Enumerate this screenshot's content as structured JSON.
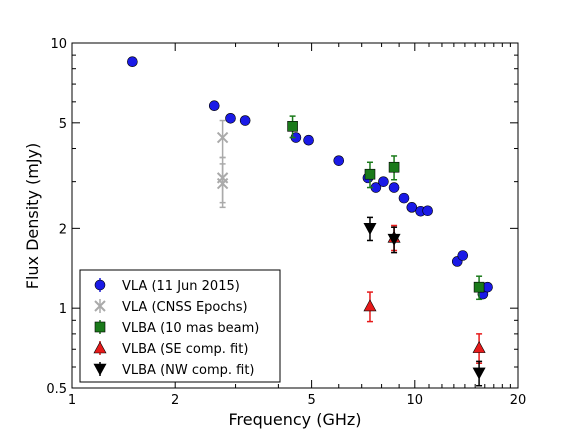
{
  "chart_data": {
    "type": "scatter",
    "xlabel": "Frequency (GHz)",
    "ylabel": "Flux Density (mJy)",
    "xscale": "log",
    "yscale": "log",
    "xlim": [
      1,
      20
    ],
    "ylim": [
      0.5,
      10
    ],
    "x_ticks": [
      {
        "value": 1,
        "label": "1"
      },
      {
        "value": 2,
        "label": "2"
      },
      {
        "value": 5,
        "label": "5"
      },
      {
        "value": 10,
        "label": "10"
      },
      {
        "value": 20,
        "label": "20"
      }
    ],
    "y_ticks": [
      {
        "value": 0.5,
        "label": "0.5"
      },
      {
        "value": 1,
        "label": "1"
      },
      {
        "value": 2,
        "label": "2"
      },
      {
        "value": 5,
        "label": "5"
      },
      {
        "value": 10,
        "label": "10"
      }
    ],
    "legend_position": "lower-left",
    "series": [
      {
        "name": "VLA (11 Jun 2015)",
        "marker": "circle",
        "color": "#1a1ae6",
        "points": [
          {
            "x": 1.5,
            "y": 8.5,
            "err": 0
          },
          {
            "x": 2.6,
            "y": 5.8,
            "err": 0
          },
          {
            "x": 2.9,
            "y": 5.2,
            "err": 0
          },
          {
            "x": 3.2,
            "y": 5.1,
            "err": 0
          },
          {
            "x": 4.5,
            "y": 4.4,
            "err": 0
          },
          {
            "x": 4.9,
            "y": 4.3,
            "err": 0
          },
          {
            "x": 6.0,
            "y": 3.6,
            "err": 0
          },
          {
            "x": 7.3,
            "y": 3.1,
            "err": 0
          },
          {
            "x": 7.7,
            "y": 2.85,
            "err": 0
          },
          {
            "x": 8.1,
            "y": 3.0,
            "err": 0
          },
          {
            "x": 8.7,
            "y": 2.85,
            "err": 0
          },
          {
            "x": 9.3,
            "y": 2.6,
            "err": 0
          },
          {
            "x": 9.8,
            "y": 2.4,
            "err": 0
          },
          {
            "x": 10.4,
            "y": 2.32,
            "err": 0
          },
          {
            "x": 10.9,
            "y": 2.33,
            "err": 0
          },
          {
            "x": 13.3,
            "y": 1.5,
            "err": 0
          },
          {
            "x": 13.8,
            "y": 1.58,
            "err": 0
          },
          {
            "x": 15.8,
            "y": 1.13,
            "err": 0
          },
          {
            "x": 16.3,
            "y": 1.2,
            "err": 0
          }
        ]
      },
      {
        "name": "VLA (CNSS Epochs)",
        "marker": "x",
        "color": "#aaaaaa",
        "points": [
          {
            "x": 2.75,
            "y": 4.4,
            "err": 0.7
          },
          {
            "x": 2.75,
            "y": 3.1,
            "err": 0.6
          },
          {
            "x": 2.75,
            "y": 2.95,
            "err": 0.55
          }
        ]
      },
      {
        "name": "VLBA (10 mas beam)",
        "marker": "square",
        "color": "#1a7a1a",
        "points": [
          {
            "x": 4.4,
            "y": 4.85,
            "err": 0.45
          },
          {
            "x": 7.4,
            "y": 3.2,
            "err": 0.35
          },
          {
            "x": 8.7,
            "y": 3.4,
            "err": 0.35
          },
          {
            "x": 15.4,
            "y": 1.2,
            "err": 0.12
          }
        ]
      },
      {
        "name": "VLBA (SE comp. fit)",
        "marker": "triangle-up",
        "color": "#e61a1a",
        "points": [
          {
            "x": 7.4,
            "y": 1.02,
            "err": 0.13
          },
          {
            "x": 8.7,
            "y": 1.85,
            "err": 0.2
          },
          {
            "x": 15.4,
            "y": 0.71,
            "err": 0.09
          }
        ]
      },
      {
        "name": "VLBA (NW comp. fit)",
        "marker": "triangle-down",
        "color": "#000000",
        "points": [
          {
            "x": 7.4,
            "y": 2.0,
            "err": 0.2
          },
          {
            "x": 8.7,
            "y": 1.82,
            "err": 0.2
          },
          {
            "x": 15.4,
            "y": 0.57,
            "err": 0.06
          }
        ]
      }
    ]
  }
}
